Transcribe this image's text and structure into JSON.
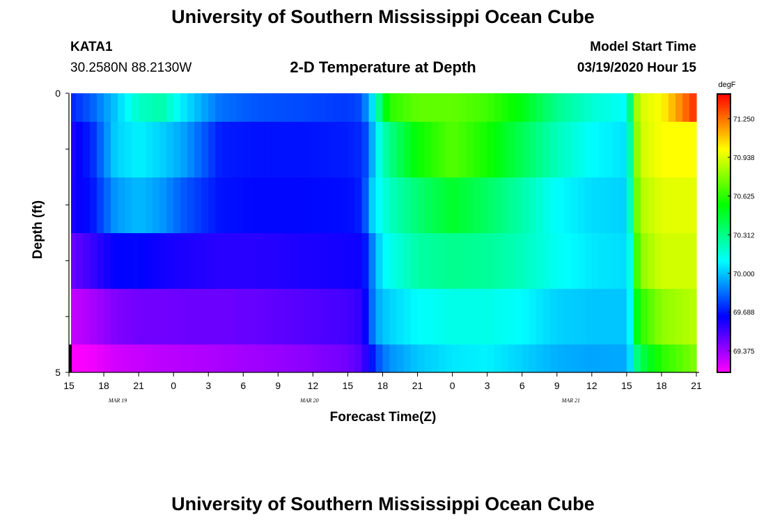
{
  "header": {
    "title": "University of Southern Mississippi Ocean Cube",
    "station": "KATA1",
    "coords": "30.2580N 88.2130W",
    "product": "2-D Temperature at Depth",
    "model_label": "Model Start Time",
    "model_time": "03/19/2020 Hour 15"
  },
  "footer": {
    "title": "University of Southern Mississippi Ocean Cube"
  },
  "chart_data": {
    "type": "heatmap",
    "xlabel": "Forecast Time(Z)",
    "ylabel": "Depth (ft)",
    "x_ticks": [
      "15",
      "18",
      "21",
      "0",
      "3",
      "6",
      "9",
      "12",
      "15",
      "18",
      "21",
      "0",
      "3",
      "6",
      "9",
      "12",
      "15",
      "18",
      "21"
    ],
    "date_labels": [
      {
        "label": "MAR 19",
        "at_tick": 1.4
      },
      {
        "label": "MAR 20",
        "at_tick": 6.9
      },
      {
        "label": "MAR 21",
        "at_tick": 14.4
      }
    ],
    "x_range_hours": [
      0,
      54
    ],
    "y_ticks": [
      "0",
      "5"
    ],
    "y_range_ft": [
      0,
      5
    ],
    "colorbar": {
      "unit": "degF",
      "levels": [
        "71.250",
        "70.938",
        "70.625",
        "70.312",
        "70.000",
        "69.688",
        "69.375"
      ],
      "range": [
        69.2,
        71.45
      ]
    },
    "depth_rows_ft": [
      "0-0.5",
      "0.5-1.5",
      "1.5-2.5",
      "2.5-3.5",
      "3.5-4.5",
      "4.5-5"
    ],
    "keypoints": [
      {
        "hour": 0,
        "t": [
          69.7,
          69.58,
          69.6,
          69.45,
          69.3,
          69.2
        ]
      },
      {
        "hour": 2,
        "t": [
          69.82,
          69.72,
          69.68,
          69.55,
          69.35,
          69.22
        ]
      },
      {
        "hour": 4,
        "t": [
          70.0,
          70.02,
          69.92,
          69.65,
          69.42,
          69.28
        ]
      },
      {
        "hour": 6,
        "t": [
          70.2,
          70.08,
          69.98,
          69.66,
          69.45,
          69.3
        ]
      },
      {
        "hour": 8,
        "t": [
          70.25,
          70.02,
          69.92,
          69.62,
          69.45,
          69.32
        ]
      },
      {
        "hour": 10,
        "t": [
          70.05,
          69.93,
          69.8,
          69.6,
          69.46,
          69.33
        ]
      },
      {
        "hour": 13,
        "t": [
          69.85,
          69.7,
          69.68,
          69.58,
          69.46,
          69.35
        ]
      },
      {
        "hour": 16,
        "t": [
          69.8,
          69.68,
          69.66,
          69.58,
          69.47,
          69.37
        ]
      },
      {
        "hour": 20,
        "t": [
          69.78,
          69.68,
          69.66,
          69.6,
          69.5,
          69.4
        ]
      },
      {
        "hour": 24,
        "t": [
          69.75,
          69.7,
          69.67,
          69.62,
          69.53,
          69.45
        ]
      },
      {
        "hour": 25,
        "t": [
          69.78,
          69.72,
          69.7,
          69.63,
          69.56,
          69.5
        ]
      },
      {
        "hour": 25.6,
        "t": [
          69.9,
          69.78,
          69.82,
          69.7,
          69.65,
          69.58
        ]
      },
      {
        "hour": 26,
        "t": [
          70.0,
          69.92,
          70.0,
          69.84,
          69.82,
          69.66
        ]
      },
      {
        "hour": 26.5,
        "t": [
          70.22,
          70.1,
          70.08,
          70.0,
          69.95,
          69.78
        ]
      },
      {
        "hour": 27.5,
        "t": [
          70.62,
          70.3,
          70.2,
          70.12,
          70.02,
          69.9
        ]
      },
      {
        "hour": 30,
        "t": [
          70.72,
          70.56,
          70.35,
          70.26,
          70.1,
          70.0
        ]
      },
      {
        "hour": 33,
        "t": [
          70.72,
          70.7,
          70.48,
          70.3,
          70.14,
          70.06
        ]
      },
      {
        "hour": 36,
        "t": [
          70.66,
          70.58,
          70.38,
          70.28,
          70.14,
          70.08
        ]
      },
      {
        "hour": 39,
        "t": [
          70.52,
          70.4,
          70.25,
          70.22,
          70.1,
          70.02
        ]
      },
      {
        "hour": 42,
        "t": [
          70.3,
          70.22,
          70.1,
          70.12,
          70.02,
          69.96
        ]
      },
      {
        "hour": 45,
        "t": [
          70.18,
          70.1,
          70.04,
          70.06,
          70.0,
          69.94
        ]
      },
      {
        "hour": 48,
        "t": [
          70.1,
          70.05,
          70.02,
          70.04,
          70.0,
          69.95
        ]
      },
      {
        "hour": 48.5,
        "t": [
          70.5,
          70.4,
          70.35,
          70.22,
          70.15,
          70.1
        ]
      },
      {
        "hour": 49,
        "t": [
          70.92,
          70.9,
          70.85,
          70.78,
          70.6,
          70.38
        ]
      },
      {
        "hour": 51,
        "t": [
          71.0,
          71.0,
          70.95,
          70.92,
          70.8,
          70.62
        ]
      },
      {
        "hour": 54,
        "t": [
          71.38,
          71.0,
          70.95,
          70.92,
          70.88,
          70.78
        ]
      }
    ]
  }
}
